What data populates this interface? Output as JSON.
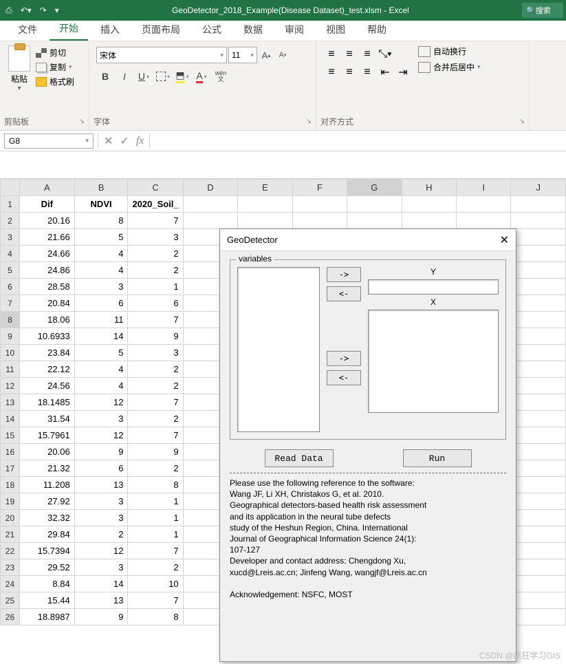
{
  "title_bar": {
    "doc_title": "GeoDetector_2018_Example(Disease Dataset)_test.xlsm - Excel",
    "search_placeholder": "搜索",
    "qat": {
      "save": "💾",
      "undo": "↶",
      "redo": "↷"
    }
  },
  "tabs": {
    "file": "文件",
    "home": "开始",
    "insert": "插入",
    "layout": "页面布局",
    "formulas": "公式",
    "data": "数据",
    "review": "审阅",
    "view": "视图",
    "help": "帮助"
  },
  "ribbon": {
    "clipboard": {
      "label": "剪贴板",
      "paste": "粘贴",
      "cut": "剪切",
      "copy": "复制",
      "painter": "格式刷"
    },
    "font": {
      "label": "字体",
      "name": "宋体",
      "size": "11",
      "bold": "B",
      "italic": "I",
      "underline": "U",
      "grow": "A",
      "shrink": "A",
      "ruby": "wén"
    },
    "align": {
      "label": "对齐方式",
      "wrap": "自动换行",
      "merge": "合并后居中"
    }
  },
  "name_box": "G8",
  "fx_label": "fx",
  "columns": [
    "A",
    "B",
    "C",
    "D",
    "E",
    "F",
    "G",
    "H",
    "I",
    "J"
  ],
  "headers": [
    "Dif",
    "NDVI",
    "2020_Soil_"
  ],
  "rows": [
    [
      "20.16",
      "8",
      "7"
    ],
    [
      "21.66",
      "5",
      "3"
    ],
    [
      "24.66",
      "4",
      "2"
    ],
    [
      "24.86",
      "4",
      "2"
    ],
    [
      "28.58",
      "3",
      "1"
    ],
    [
      "20.84",
      "6",
      "6"
    ],
    [
      "18.06",
      "11",
      "7"
    ],
    [
      "10.6933",
      "14",
      "9"
    ],
    [
      "23.84",
      "5",
      "3"
    ],
    [
      "22.12",
      "4",
      "2"
    ],
    [
      "24.56",
      "4",
      "2"
    ],
    [
      "18.1485",
      "12",
      "7"
    ],
    [
      "31.54",
      "3",
      "2"
    ],
    [
      "15.7961",
      "12",
      "7"
    ],
    [
      "20.06",
      "9",
      "9"
    ],
    [
      "21.32",
      "6",
      "2"
    ],
    [
      "11.208",
      "13",
      "8"
    ],
    [
      "27.92",
      "3",
      "1"
    ],
    [
      "32.32",
      "3",
      "1"
    ],
    [
      "29.84",
      "2",
      "1"
    ],
    [
      "15.7394",
      "12",
      "7"
    ],
    [
      "29.52",
      "3",
      "2"
    ],
    [
      "8.84",
      "14",
      "10"
    ],
    [
      "15.44",
      "13",
      "7"
    ],
    [
      "18.8987",
      "9",
      "8"
    ]
  ],
  "selected": {
    "col": "G",
    "row": 8
  },
  "dialog": {
    "title": "GeoDetector",
    "variables_label": "variables",
    "y_label": "Y",
    "x_label": "X",
    "arrow_right": "->",
    "arrow_left": "<-",
    "read_data": "Read Data",
    "run": "Run",
    "reference": "Please use the following reference to the software:\nWang JF, Li XH, Christakos G, et al. 2010.\nGeographical detectors-based health risk assessment\nand its application in the neural tube defects\nstudy of the Heshun Region, China. International\nJournal of Geographical Information Science 24(1):\n107-127\nDeveloper and contact address: Chengdong Xu,\nxucd@Lreis.ac.cn; Jinfeng Wang, wangjf@Lreis.ac.cn\n\nAcknowledgement: NSFC, MOST"
  },
  "watermark": "CSDN @疯狂学习GIS",
  "colors": {
    "excel_green": "#217346",
    "ribbon_bg": "#f3f2f1",
    "border": "#d4d4d4",
    "dialog_bg": "#f0f0f0"
  }
}
